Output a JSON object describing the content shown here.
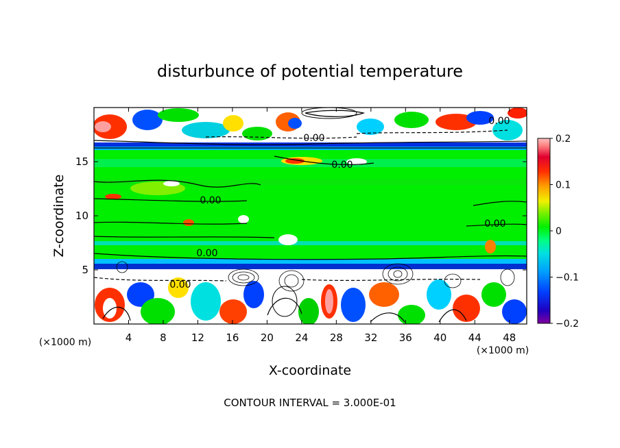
{
  "chart_data": {
    "type": "heatmap",
    "title": "disturbunce of potential temperature",
    "xlabel": "X-coordinate",
    "ylabel": "Z-coordinate",
    "x_unit_label": "(×1000 m)",
    "y_unit_label": "(×1000 m)",
    "xlim": [
      0,
      50
    ],
    "ylim": [
      0,
      20
    ],
    "x_ticks": [
      4,
      8,
      12,
      16,
      20,
      24,
      28,
      32,
      36,
      40,
      44,
      48
    ],
    "y_ticks": [
      5,
      10,
      15
    ],
    "colorbar": {
      "range": [
        -0.2,
        0.2
      ],
      "ticks": [
        "0.2",
        "0.1",
        "0",
        "−0.1",
        "−0.2"
      ],
      "colors": [
        "#8000a0",
        "#2000c0",
        "#0040ff",
        "#00a0ff",
        "#00e0e0",
        "#00ff80",
        "#00f000",
        "#40e000",
        "#a0f000",
        "#f0f000",
        "#ffa000",
        "#ff5000",
        "#ff0000",
        "#e00030",
        "#ff8080",
        "#ffc0c0"
      ]
    },
    "contour_labels": [
      "0.00",
      "0.00",
      "0.00",
      "0.00",
      "0.00",
      "0.00",
      "0.00"
    ],
    "footer": "CONTOUR INTERVAL = 3.000E-01",
    "background_value": 0.0
  }
}
